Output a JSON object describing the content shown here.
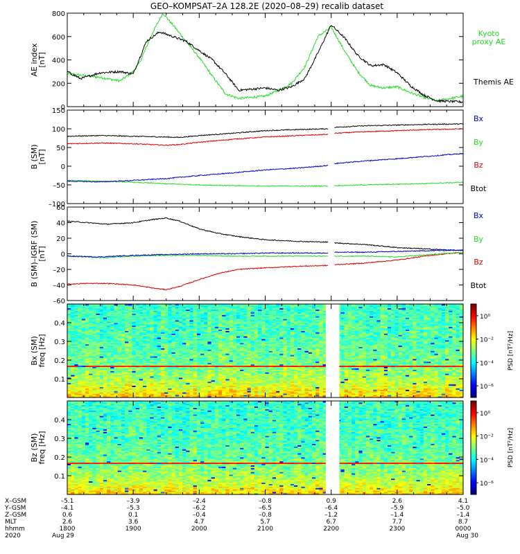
{
  "title": "GEO–KOMPSAT–2A 128.2E (2020–08–29) recalib dataset",
  "x_axis": {
    "tick_hours": [
      18,
      19,
      20,
      21,
      22,
      23,
      24
    ],
    "rows": [
      {
        "label": "X–GSM",
        "values": [
          "–5.1",
          "–3.9",
          "–2.4",
          "–0.8",
          "0.9",
          "2.6",
          "4.1"
        ]
      },
      {
        "label": "Y–GSM",
        "values": [
          "–4.1",
          "–5.3",
          "–6.2",
          "–6.5",
          "–6.4",
          "–5.9",
          "–5.0"
        ]
      },
      {
        "label": "Z–GSM",
        "values": [
          "0.6",
          "0.1",
          "–0.4",
          "–0.8",
          "–1.2",
          "–1.4",
          "–1.4"
        ]
      },
      {
        "label": "MLT",
        "values": [
          "2.6",
          "3.6",
          "4.7",
          "5.7",
          "6.7",
          "7.7",
          "8.7"
        ]
      },
      {
        "label": "hhmm",
        "values": [
          "1800",
          "1900",
          "2000",
          "2100",
          "2200",
          "2300",
          "0000"
        ]
      },
      {
        "label": "2020",
        "values": [
          "Aug 29",
          "",
          "",
          "",
          "",
          "",
          "Aug 30"
        ]
      }
    ]
  },
  "colors": {
    "themis": "#000000",
    "kyoto": "#22dd22",
    "bx": "#0000cc",
    "by": "#22dd22",
    "bz": "#dd0000",
    "btot": "#000000"
  },
  "chart_data": [
    {
      "type": "line",
      "ylabel": "AE index\n[nT]",
      "ylim": [
        0,
        800
      ],
      "yticks": [
        0,
        200,
        400,
        600,
        800
      ],
      "legend_placement": "right",
      "series": [
        {
          "name": "Themis AE",
          "color": "#000000",
          "x": [
            18.0,
            18.2,
            18.5,
            18.8,
            19.0,
            19.2,
            19.4,
            19.6,
            19.8,
            20.0,
            20.2,
            20.4,
            20.6,
            20.8,
            21.0,
            21.2,
            21.4,
            21.6,
            21.8,
            22.0,
            22.2,
            22.4,
            22.6,
            22.8,
            23.0,
            23.2,
            23.4,
            23.6,
            23.8,
            24.0
          ],
          "y": [
            300,
            240,
            290,
            300,
            280,
            560,
            640,
            600,
            560,
            480,
            400,
            280,
            140,
            150,
            160,
            140,
            170,
            240,
            460,
            700,
            590,
            440,
            350,
            360,
            290,
            180,
            100,
            50,
            45,
            40
          ]
        },
        {
          "name": "Kyoto proxy AE",
          "color": "#22dd22",
          "x": [
            18.0,
            18.2,
            18.5,
            18.8,
            19.0,
            19.1,
            19.3,
            19.45,
            19.6,
            19.8,
            20.0,
            20.2,
            20.4,
            20.6,
            20.8,
            21.0,
            21.2,
            21.4,
            21.6,
            21.8,
            22.0,
            22.2,
            22.4,
            22.6,
            22.8,
            23.0,
            23.2,
            23.4,
            23.6,
            23.8,
            24.0
          ],
          "y": [
            280,
            270,
            250,
            220,
            300,
            380,
            640,
            800,
            700,
            560,
            420,
            260,
            110,
            70,
            80,
            90,
            140,
            200,
            340,
            600,
            680,
            480,
            300,
            180,
            160,
            170,
            120,
            80,
            50,
            70,
            90
          ]
        }
      ]
    },
    {
      "type": "line",
      "ylabel": "B (SM)\n[nT]",
      "ylim": [
        -100,
        150
      ],
      "yticks": [
        -100,
        -50,
        0,
        50,
        100,
        150
      ],
      "gap": [
        21.95,
        22.05
      ],
      "legend_placement": "right",
      "series": [
        {
          "name": "Bx",
          "color": "#0000cc",
          "x": [
            18.0,
            18.5,
            19.0,
            19.5,
            20.0,
            20.5,
            21.0,
            21.5,
            21.95,
            22.05,
            22.5,
            23.0,
            23.5,
            24.0
          ],
          "y": [
            -40,
            -42,
            -38,
            -33,
            -25,
            -18,
            -10,
            -5,
            2,
            7,
            14,
            20,
            27,
            34
          ]
        },
        {
          "name": "By",
          "color": "#22dd22",
          "x": [
            18.0,
            18.5,
            19.0,
            19.5,
            20.0,
            20.5,
            21.0,
            21.5,
            21.95,
            22.05,
            22.5,
            23.0,
            23.5,
            24.0
          ],
          "y": [
            -38,
            -40,
            -43,
            -47,
            -50,
            -52,
            -53,
            -53,
            -53,
            -52,
            -50,
            -48,
            -46,
            -43
          ]
        },
        {
          "name": "Bz",
          "color": "#dd0000",
          "x": [
            18.0,
            18.5,
            19.0,
            19.5,
            19.7,
            20.0,
            20.5,
            21.0,
            21.5,
            21.95,
            22.05,
            22.5,
            23.0,
            23.5,
            24.0
          ],
          "y": [
            60,
            62,
            60,
            56,
            58,
            64,
            72,
            78,
            82,
            85,
            88,
            92,
            95,
            98,
            100
          ]
        },
        {
          "name": "Btot",
          "color": "#000000",
          "x": [
            18.0,
            18.5,
            19.0,
            19.5,
            19.7,
            20.0,
            20.5,
            21.0,
            21.5,
            21.95,
            22.05,
            22.5,
            23.0,
            23.5,
            24.0
          ],
          "y": [
            80,
            82,
            80,
            78,
            77,
            82,
            88,
            95,
            98,
            100,
            104,
            108,
            110,
            112,
            113
          ]
        }
      ]
    },
    {
      "type": "line",
      "ylabel": "B (SM)–IGRF (SM)\n[nT]",
      "ylim": [
        -60,
        60
      ],
      "yticks": [
        -60,
        -40,
        -20,
        0,
        20,
        40,
        60
      ],
      "gap": [
        21.95,
        22.05
      ],
      "legend_placement": "right",
      "series": [
        {
          "name": "Bx",
          "color": "#0000cc",
          "x": [
            18.0,
            18.5,
            19.0,
            19.5,
            20.0,
            20.5,
            21.0,
            21.5,
            21.95,
            22.05,
            22.5,
            23.0,
            23.5,
            24.0
          ],
          "y": [
            -3,
            -4,
            -2,
            -1,
            0,
            0,
            1,
            1,
            1,
            2,
            2,
            3,
            4,
            5
          ]
        },
        {
          "name": "By",
          "color": "#22dd22",
          "x": [
            18.0,
            18.5,
            19.0,
            19.5,
            20.0,
            20.5,
            21.0,
            21.5,
            21.95,
            22.05,
            22.5,
            23.0,
            23.5,
            24.0
          ],
          "y": [
            -3,
            -5,
            -3,
            -2,
            -2,
            -3,
            -3,
            -3,
            -3,
            -3,
            -3,
            -4,
            -1,
            2
          ]
        },
        {
          "name": "Bz",
          "color": "#dd0000",
          "x": [
            18.0,
            18.3,
            18.6,
            19.0,
            19.3,
            19.5,
            19.7,
            20.0,
            20.3,
            20.6,
            21.0,
            21.5,
            21.95,
            22.05,
            22.5,
            23.0,
            23.5,
            24.0
          ],
          "y": [
            -39,
            -38,
            -38,
            -40,
            -44,
            -46,
            -42,
            -33,
            -25,
            -20,
            -18,
            -16,
            -15,
            -14,
            -12,
            -8,
            -2,
            2
          ]
        },
        {
          "name": "Btot",
          "color": "#000000",
          "x": [
            18.0,
            18.3,
            18.6,
            19.0,
            19.3,
            19.5,
            19.7,
            20.0,
            20.3,
            20.6,
            21.0,
            21.5,
            21.95,
            22.05,
            22.5,
            23.0,
            23.5,
            24.0
          ],
          "y": [
            42,
            40,
            38,
            40,
            44,
            46,
            42,
            32,
            26,
            22,
            18,
            16,
            15,
            14,
            12,
            8,
            6,
            4
          ]
        }
      ]
    },
    {
      "type": "heatmap",
      "ylabel": "Bx (SM)\nfreq [Hz]",
      "ylim": [
        0,
        0.5
      ],
      "yticks": [
        0.1,
        0.2,
        0.3,
        0.4
      ],
      "gap": [
        21.95,
        22.05
      ],
      "colorbar": {
        "label": "PSD [nT²/Hz]",
        "ticks": [
          "10⁰",
          "10⁻²",
          "10⁻⁴",
          "10⁻⁶"
        ],
        "range_log10": [
          -7,
          1
        ]
      },
      "line_freq_hz": 0.167,
      "psd_log10_profile": {
        "freq_hz": [
          0.0,
          0.05,
          0.1,
          0.15,
          0.2,
          0.3,
          0.4,
          0.5
        ],
        "value": [
          -1.5,
          -2.2,
          -2.6,
          -2.9,
          -3.1,
          -3.3,
          -3.4,
          -3.5
        ]
      }
    },
    {
      "type": "heatmap",
      "ylabel": "Bz (SM)\nfreq [Hz]",
      "ylim": [
        0,
        0.5
      ],
      "yticks": [
        0.1,
        0.2,
        0.3,
        0.4
      ],
      "gap": [
        21.95,
        22.05
      ],
      "colorbar": {
        "label": "PSD [nT²/Hz]",
        "ticks": [
          "10⁰",
          "10⁻²",
          "10⁻⁴",
          "10⁻⁶"
        ],
        "range_log10": [
          -7,
          1
        ]
      },
      "line_freq_hz": 0.167,
      "psd_log10_profile": {
        "freq_hz": [
          0.0,
          0.05,
          0.1,
          0.15,
          0.2,
          0.3,
          0.4,
          0.5
        ],
        "value": [
          -1.6,
          -2.3,
          -2.7,
          -3.0,
          -3.2,
          -3.4,
          -3.5,
          -3.6
        ]
      }
    }
  ]
}
